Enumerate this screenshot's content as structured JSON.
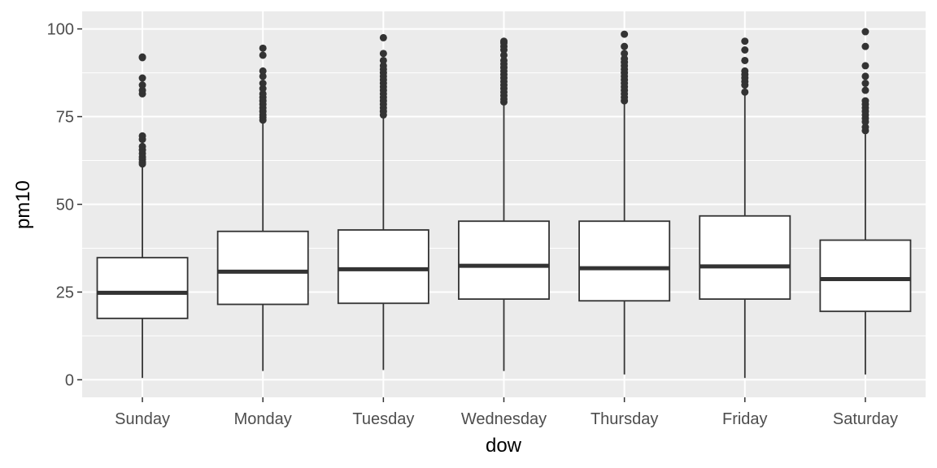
{
  "chart_data": {
    "type": "boxplot",
    "xlabel": "dow",
    "ylabel": "pm10",
    "ylim": [
      -5,
      105
    ],
    "yticks": [
      0,
      25,
      50,
      75,
      100
    ],
    "grid": true,
    "categories": [
      "Sunday",
      "Monday",
      "Tuesday",
      "Wednesday",
      "Thursday",
      "Friday",
      "Saturday"
    ],
    "boxes": [
      {
        "category": "Sunday",
        "min": 0.5,
        "q1": 17.5,
        "median": 24.8,
        "q3": 34.8,
        "max": 61.0,
        "outliers": [
          61.5,
          62.0,
          62.8,
          63.5,
          64.5,
          65.5,
          66.5,
          68.5,
          69.5,
          81.5,
          82.5,
          84.0,
          86.0,
          91.8,
          92.0
        ]
      },
      {
        "category": "Monday",
        "min": 2.5,
        "q1": 21.5,
        "median": 30.8,
        "q3": 42.3,
        "max": 73.5,
        "outliers": [
          74.0,
          74.8,
          75.5,
          76.5,
          77.5,
          78.5,
          79.5,
          80.5,
          81.5,
          83.0,
          84.5,
          86.5,
          88.0,
          92.5,
          94.5
        ]
      },
      {
        "category": "Tuesday",
        "min": 2.8,
        "q1": 21.8,
        "median": 31.5,
        "q3": 42.7,
        "max": 75.0,
        "outliers": [
          75.5,
          76.5,
          77.5,
          78.5,
          79.5,
          80.5,
          81.5,
          82.5,
          83.5,
          84.5,
          85.5,
          86.5,
          87.5,
          88.5,
          89.5,
          91.0,
          93.0,
          97.5
        ]
      },
      {
        "category": "Wednesday",
        "min": 2.5,
        "q1": 23.0,
        "median": 32.5,
        "q3": 45.2,
        "max": 78.8,
        "outliers": [
          79.2,
          80.0,
          81.0,
          82.0,
          83.0,
          84.0,
          85.0,
          86.0,
          87.0,
          88.0,
          89.0,
          90.0,
          91.0,
          92.5,
          94.0,
          95.0,
          96.0,
          96.5
        ]
      },
      {
        "category": "Thursday",
        "min": 1.5,
        "q1": 22.5,
        "median": 31.8,
        "q3": 45.2,
        "max": 79.0,
        "outliers": [
          79.5,
          80.5,
          81.5,
          82.5,
          83.5,
          84.5,
          85.5,
          86.5,
          87.5,
          88.5,
          89.5,
          90.5,
          91.5,
          93.0,
          95.0,
          98.5
        ]
      },
      {
        "category": "Friday",
        "min": 0.5,
        "q1": 23.0,
        "median": 32.3,
        "q3": 46.7,
        "max": 81.5,
        "outliers": [
          82.0,
          84.0,
          85.0,
          86.0,
          87.0,
          88.0,
          91.0,
          94.0,
          96.5
        ]
      },
      {
        "category": "Saturday",
        "min": 1.5,
        "q1": 19.5,
        "median": 28.7,
        "q3": 39.8,
        "max": 70.0,
        "outliers": [
          71.0,
          72.0,
          73.5,
          74.5,
          75.5,
          76.5,
          77.5,
          78.5,
          79.5,
          82.5,
          84.5,
          86.5,
          89.5,
          95.0,
          99.2
        ]
      }
    ]
  }
}
